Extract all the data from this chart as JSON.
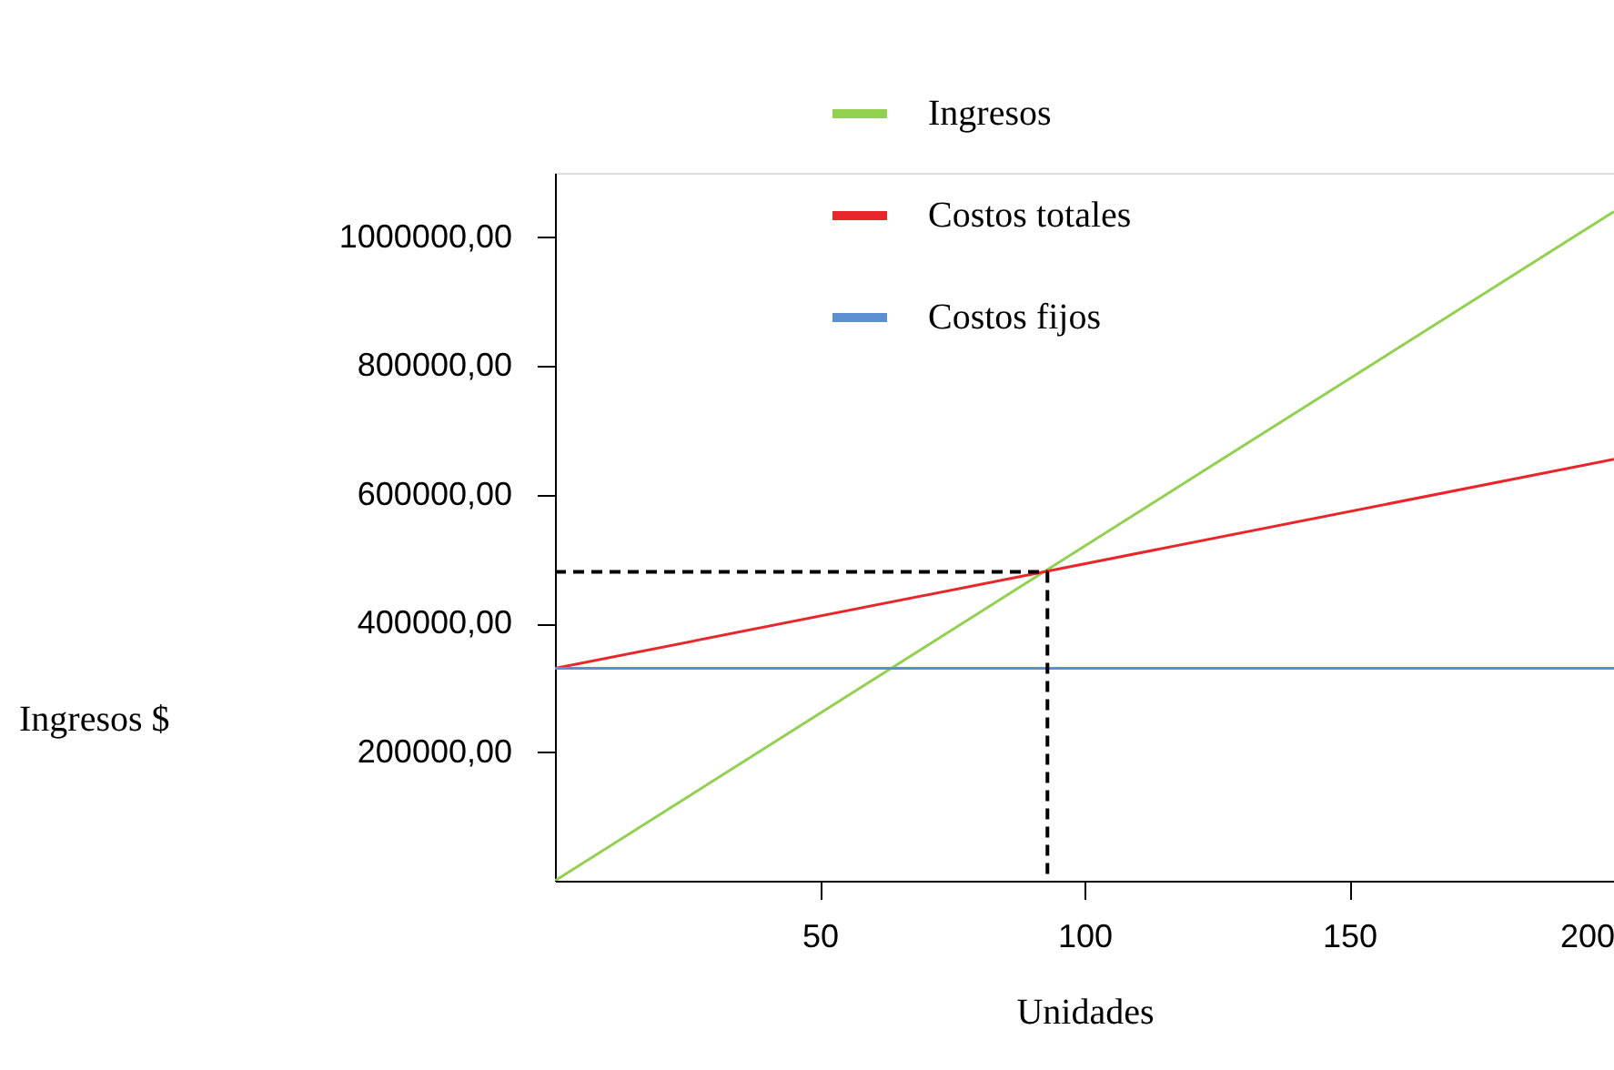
{
  "chart_data": {
    "type": "line",
    "xlabel": "Unidades",
    "ylabel": "Ingresos $",
    "xlim": [
      0,
      200
    ],
    "xticks": [
      50,
      100,
      150,
      200
    ],
    "ylim": [
      0,
      1100000
    ],
    "yticks": [
      {
        "value": 200000,
        "label": "200000,00"
      },
      {
        "value": 400000,
        "label": "400000,00"
      },
      {
        "value": 600000,
        "label": "600000,00"
      },
      {
        "value": 800000,
        "label": "800000,00"
      },
      {
        "value": 1000000,
        "label": "1000000,00"
      }
    ],
    "grid": false,
    "legend": "top",
    "marker": "none",
    "series": [
      {
        "name": "Ingresos",
        "color": "#92d050",
        "x": [
          0,
          200
        ],
        "values": [
          0,
          1040000
        ]
      },
      {
        "name": "Costos totales",
        "color": "#e8262b",
        "x": [
          0,
          200
        ],
        "values": [
          330000,
          655000
        ]
      },
      {
        "name": "Costos fijos",
        "color": "#5b8fd0",
        "x": [
          0,
          200
        ],
        "values": [
          330000,
          330000
        ]
      },
      {
        "type": "line",
        "color": "#000000",
        "line_style": "dashed",
        "x": [
          0,
          93
        ],
        "values": [
          480000,
          480000
        ]
      },
      {
        "type": "line",
        "color": "#000000",
        "line_style": "dashed",
        "x": [
          93,
          93
        ],
        "values": [
          480000,
          0
        ]
      }
    ]
  }
}
